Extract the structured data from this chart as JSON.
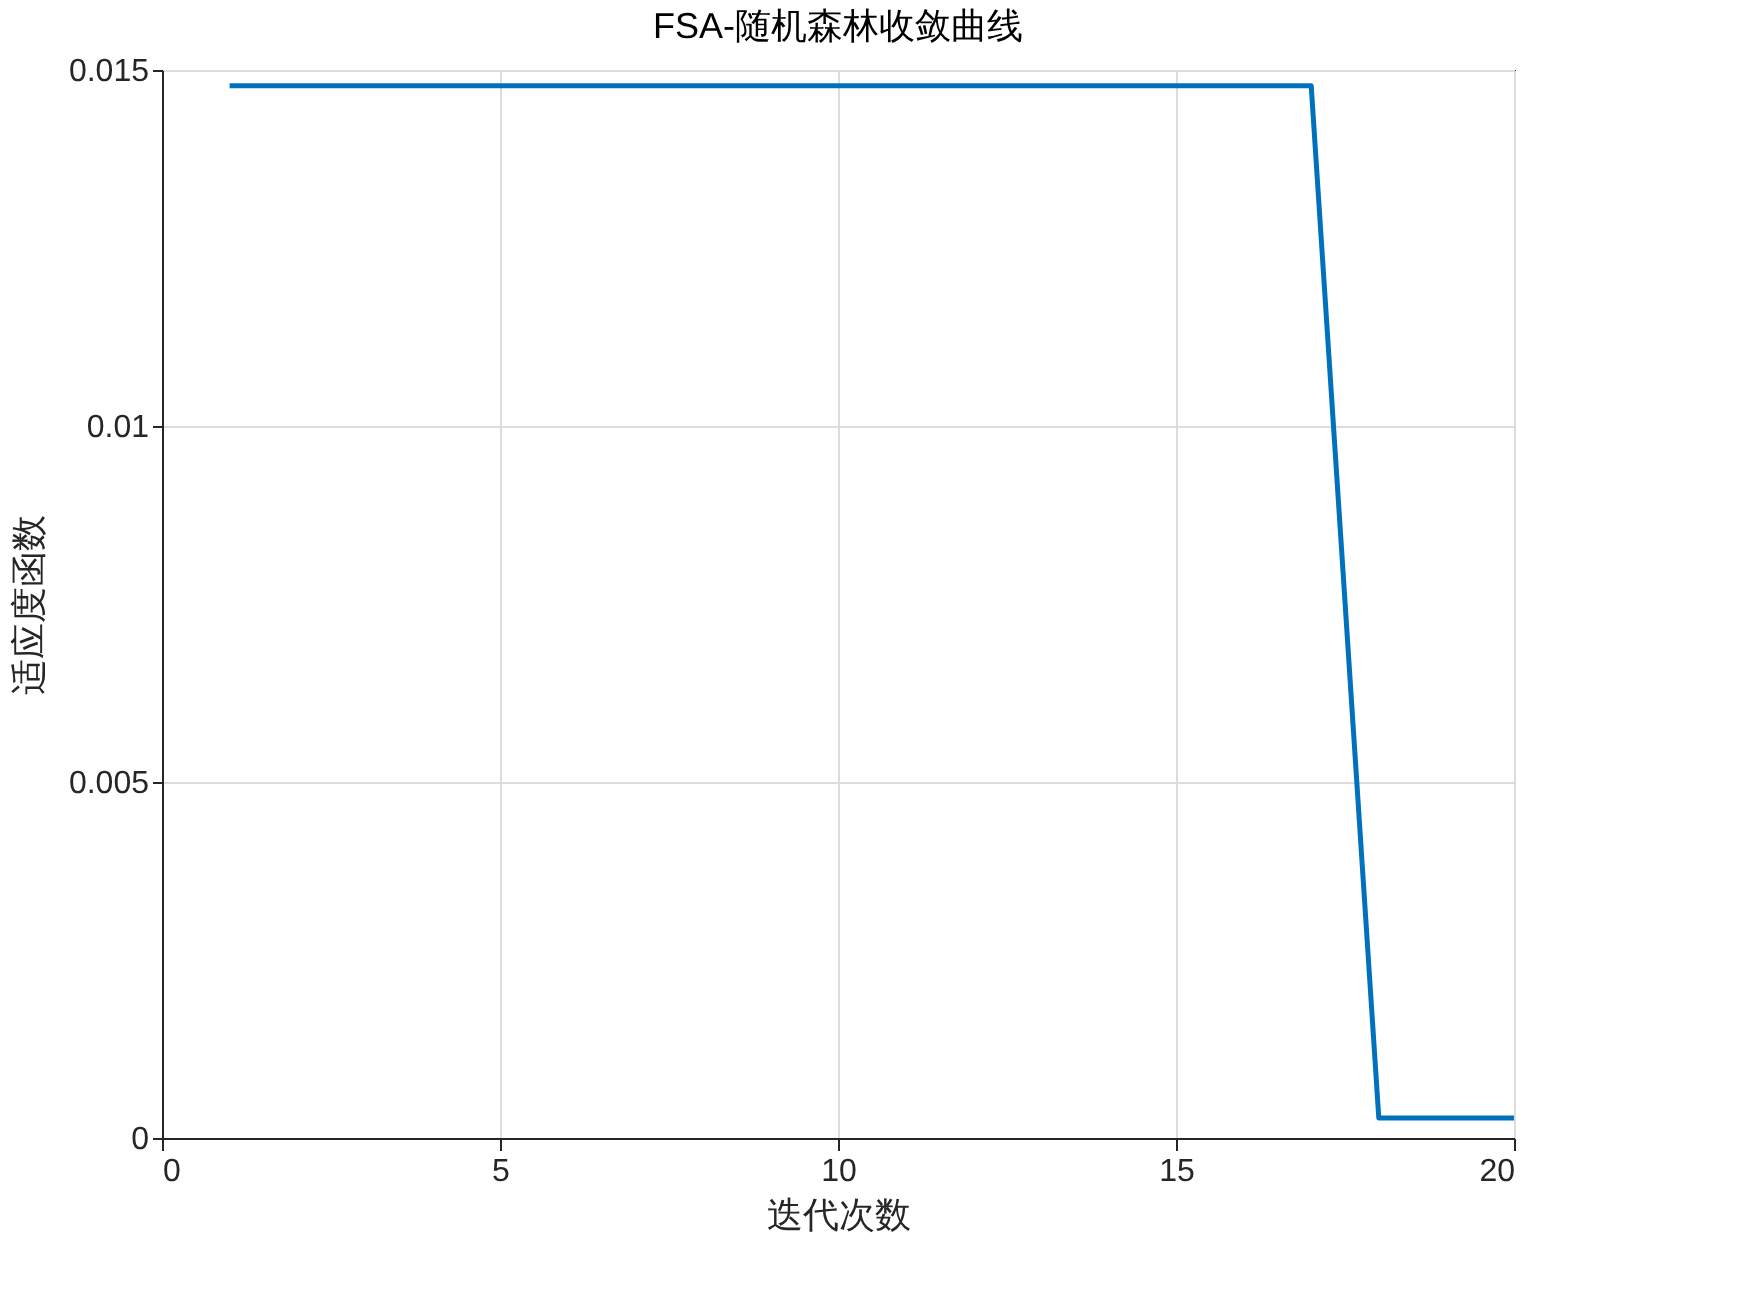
{
  "chart_data": {
    "type": "line",
    "title": "FSA-随机森林收敛曲线",
    "xlabel": "迭代次数",
    "ylabel": "适应度函数",
    "x": [
      1,
      2,
      3,
      4,
      5,
      6,
      7,
      8,
      9,
      10,
      11,
      12,
      13,
      14,
      15,
      16,
      17,
      18,
      19,
      20
    ],
    "series": [
      {
        "color": "#0072bd",
        "values": [
          0.01478,
          0.01478,
          0.01478,
          0.01478,
          0.01478,
          0.01478,
          0.01478,
          0.01478,
          0.01478,
          0.01478,
          0.01478,
          0.01478,
          0.01478,
          0.01478,
          0.01478,
          0.01478,
          0.01478,
          0.00028,
          0.00028,
          0.00028
        ]
      }
    ],
    "xlim": [
      0,
      20
    ],
    "xticks": [
      0,
      5,
      10,
      15,
      20
    ],
    "ylim": [
      0,
      0.015
    ],
    "yticks": [
      0,
      0.005,
      0.01,
      0.015
    ],
    "grid": true,
    "marker": "none",
    "line_style": "solid"
  }
}
